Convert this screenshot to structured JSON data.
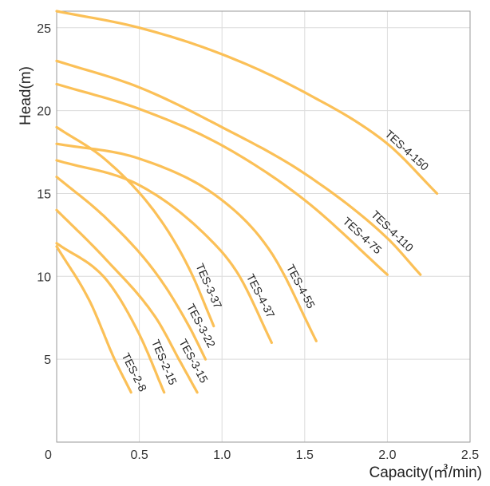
{
  "chart_data": {
    "type": "line",
    "xlabel": "Capacity(㎥/min)",
    "ylabel": "Head(m)",
    "xlim": [
      0,
      2.5
    ],
    "ylim": [
      0,
      26
    ],
    "x_ticks": [
      "0",
      "0.5",
      "1.0",
      "1.5",
      "2.0",
      "2.5"
    ],
    "y_ticks": [
      "5",
      "10",
      "15",
      "20",
      "25"
    ],
    "grid": true,
    "line_color": "#fbc057",
    "series": [
      {
        "name": "TES-4-150",
        "x": [
          0,
          0.5,
          1.0,
          1.5,
          2.0,
          2.3
        ],
        "y": [
          26,
          25,
          23.4,
          21.1,
          18,
          15
        ]
      },
      {
        "name": "TES-4-110",
        "x": [
          0,
          0.5,
          1.0,
          1.5,
          2.0,
          2.2
        ],
        "y": [
          23,
          21.4,
          19,
          16.2,
          12.3,
          10.1
        ]
      },
      {
        "name": "TES-4-75",
        "x": [
          0,
          0.5,
          1.0,
          1.5,
          2.0
        ],
        "y": [
          21.6,
          20.1,
          17.9,
          14.6,
          10.1
        ]
      },
      {
        "name": "TES-4-55",
        "x": [
          0,
          0.5,
          1.0,
          1.3,
          1.57
        ],
        "y": [
          18,
          17.1,
          14.6,
          11.4,
          6.1
        ]
      },
      {
        "name": "TES-4-37",
        "x": [
          0,
          0.5,
          0.9,
          1.1,
          1.3
        ],
        "y": [
          17,
          15.5,
          12.5,
          10.1,
          6
        ]
      },
      {
        "name": "TES-3-37",
        "x": [
          0,
          0.3,
          0.6,
          0.8,
          0.95
        ],
        "y": [
          19,
          17,
          13.8,
          10.5,
          7
        ]
      },
      {
        "name": "TES-3-22",
        "x": [
          0,
          0.3,
          0.6,
          0.8,
          0.9
        ],
        "y": [
          16,
          13.5,
          10.2,
          7,
          5
        ]
      },
      {
        "name": "TES-3-15",
        "x": [
          0,
          0.3,
          0.6,
          0.75,
          0.85
        ],
        "y": [
          14,
          11,
          7.5,
          4.8,
          3
        ]
      },
      {
        "name": "TES-2-15",
        "x": [
          0,
          0.3,
          0.5,
          0.65
        ],
        "y": [
          12,
          9.8,
          6.5,
          3
        ]
      },
      {
        "name": "TES-2-8",
        "x": [
          0,
          0.2,
          0.35,
          0.45
        ],
        "y": [
          11.8,
          8.5,
          5,
          3
        ]
      }
    ]
  }
}
